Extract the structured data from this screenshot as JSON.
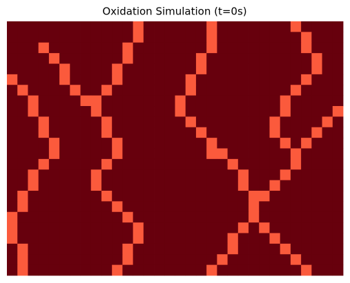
{
  "chart_data": {
    "type": "heatmap",
    "title": "Oxidation Simulation (t=0s)",
    "colors": [
      "#67000d",
      "#fb5a3c"
    ],
    "values": [
      [
        0,
        0,
        0,
        0,
        0,
        0,
        0,
        0,
        0,
        0,
        0,
        0,
        1,
        0,
        0,
        0,
        0,
        0,
        0,
        1,
        0,
        0,
        0,
        0,
        0,
        0,
        0,
        1,
        0,
        0,
        0,
        0
      ],
      [
        0,
        0,
        0,
        0,
        0,
        0,
        0,
        0,
        0,
        0,
        0,
        0,
        1,
        0,
        0,
        0,
        0,
        0,
        0,
        1,
        0,
        0,
        0,
        0,
        0,
        0,
        0,
        0,
        1,
        0,
        0,
        0
      ],
      [
        0,
        0,
        0,
        1,
        0,
        0,
        0,
        0,
        0,
        0,
        0,
        1,
        0,
        0,
        0,
        0,
        0,
        0,
        0,
        1,
        0,
        0,
        0,
        0,
        0,
        0,
        0,
        0,
        1,
        0,
        0,
        0
      ],
      [
        0,
        0,
        0,
        0,
        1,
        0,
        0,
        0,
        0,
        0,
        0,
        1,
        0,
        0,
        0,
        0,
        0,
        0,
        1,
        0,
        0,
        0,
        0,
        0,
        0,
        0,
        0,
        0,
        0,
        1,
        0,
        0
      ],
      [
        0,
        0,
        0,
        0,
        0,
        1,
        0,
        0,
        0,
        0,
        1,
        0,
        0,
        0,
        0,
        0,
        0,
        0,
        1,
        0,
        0,
        0,
        0,
        0,
        0,
        0,
        0,
        0,
        0,
        1,
        0,
        0
      ],
      [
        1,
        0,
        0,
        0,
        0,
        1,
        0,
        0,
        0,
        0,
        1,
        0,
        0,
        0,
        0,
        0,
        0,
        1,
        0,
        0,
        0,
        0,
        0,
        0,
        0,
        0,
        0,
        0,
        1,
        0,
        0,
        0
      ],
      [
        0,
        1,
        0,
        0,
        0,
        0,
        1,
        0,
        0,
        1,
        0,
        0,
        0,
        0,
        0,
        0,
        0,
        1,
        0,
        0,
        0,
        0,
        0,
        0,
        0,
        0,
        0,
        1,
        0,
        0,
        0,
        0
      ],
      [
        0,
        0,
        1,
        0,
        0,
        0,
        0,
        1,
        1,
        0,
        0,
        0,
        0,
        0,
        0,
        0,
        1,
        0,
        0,
        0,
        0,
        0,
        0,
        0,
        0,
        0,
        1,
        0,
        0,
        0,
        0,
        0
      ],
      [
        0,
        0,
        1,
        0,
        0,
        0,
        0,
        0,
        1,
        0,
        0,
        0,
        0,
        0,
        0,
        0,
        1,
        0,
        0,
        0,
        0,
        0,
        0,
        0,
        0,
        0,
        1,
        0,
        0,
        0,
        0,
        1
      ],
      [
        0,
        0,
        0,
        1,
        0,
        0,
        0,
        0,
        0,
        1,
        0,
        0,
        0,
        0,
        0,
        0,
        0,
        1,
        0,
        0,
        0,
        0,
        0,
        0,
        0,
        1,
        0,
        0,
        0,
        0,
        1,
        0
      ],
      [
        0,
        0,
        0,
        1,
        0,
        0,
        0,
        0,
        0,
        1,
        0,
        0,
        0,
        0,
        0,
        0,
        0,
        0,
        1,
        0,
        0,
        0,
        0,
        0,
        0,
        1,
        0,
        0,
        0,
        1,
        0,
        0
      ],
      [
        0,
        0,
        0,
        0,
        1,
        0,
        0,
        0,
        0,
        0,
        1,
        0,
        0,
        0,
        0,
        0,
        0,
        0,
        0,
        1,
        0,
        0,
        0,
        0,
        0,
        0,
        1,
        0,
        1,
        0,
        0,
        0
      ],
      [
        0,
        0,
        0,
        0,
        1,
        0,
        0,
        0,
        0,
        0,
        1,
        0,
        0,
        0,
        0,
        0,
        0,
        0,
        0,
        1,
        1,
        0,
        0,
        0,
        0,
        0,
        0,
        1,
        0,
        0,
        0,
        0
      ],
      [
        0,
        0,
        0,
        1,
        0,
        0,
        0,
        0,
        0,
        1,
        0,
        0,
        0,
        0,
        0,
        0,
        0,
        0,
        0,
        0,
        0,
        1,
        0,
        0,
        0,
        0,
        0,
        1,
        0,
        0,
        0,
        0
      ],
      [
        0,
        0,
        1,
        0,
        0,
        0,
        0,
        0,
        1,
        0,
        0,
        0,
        0,
        0,
        0,
        0,
        0,
        0,
        0,
        0,
        0,
        0,
        1,
        0,
        0,
        0,
        1,
        0,
        0,
        0,
        0,
        0
      ],
      [
        0,
        0,
        1,
        0,
        0,
        0,
        0,
        0,
        1,
        0,
        0,
        0,
        0,
        0,
        0,
        0,
        0,
        0,
        0,
        0,
        0,
        0,
        1,
        0,
        0,
        1,
        0,
        0,
        0,
        0,
        0,
        0
      ],
      [
        0,
        1,
        0,
        0,
        0,
        0,
        0,
        0,
        0,
        1,
        0,
        0,
        0,
        0,
        0,
        0,
        0,
        0,
        0,
        0,
        0,
        0,
        0,
        1,
        1,
        0,
        0,
        0,
        0,
        0,
        0,
        0
      ],
      [
        0,
        1,
        0,
        0,
        0,
        0,
        0,
        0,
        0,
        0,
        1,
        0,
        0,
        0,
        0,
        0,
        0,
        0,
        0,
        0,
        0,
        0,
        0,
        1,
        0,
        0,
        0,
        0,
        0,
        0,
        0,
        0
      ],
      [
        1,
        0,
        0,
        0,
        0,
        0,
        0,
        0,
        0,
        0,
        0,
        1,
        0,
        0,
        0,
        0,
        0,
        0,
        0,
        0,
        0,
        0,
        0,
        1,
        0,
        0,
        0,
        0,
        0,
        0,
        0,
        0
      ],
      [
        1,
        0,
        0,
        0,
        0,
        0,
        0,
        0,
        0,
        0,
        0,
        0,
        1,
        0,
        0,
        0,
        0,
        0,
        0,
        0,
        0,
        0,
        1,
        0,
        1,
        0,
        0,
        0,
        0,
        0,
        0,
        0
      ],
      [
        1,
        0,
        0,
        0,
        0,
        0,
        0,
        0,
        0,
        0,
        0,
        0,
        1,
        0,
        0,
        0,
        0,
        0,
        0,
        0,
        0,
        1,
        0,
        0,
        0,
        1,
        0,
        0,
        0,
        0,
        0,
        0
      ],
      [
        0,
        1,
        0,
        0,
        0,
        0,
        0,
        0,
        0,
        0,
        0,
        1,
        0,
        0,
        0,
        0,
        0,
        0,
        0,
        0,
        0,
        1,
        0,
        0,
        0,
        0,
        1,
        0,
        0,
        0,
        0,
        0
      ],
      [
        0,
        1,
        0,
        0,
        0,
        0,
        0,
        0,
        0,
        0,
        0,
        1,
        0,
        0,
        0,
        0,
        0,
        0,
        0,
        0,
        1,
        0,
        0,
        0,
        0,
        0,
        0,
        1,
        0,
        0,
        0,
        0
      ],
      [
        0,
        1,
        0,
        0,
        0,
        0,
        0,
        0,
        0,
        0,
        1,
        0,
        0,
        0,
        0,
        0,
        0,
        0,
        0,
        1,
        0,
        0,
        0,
        0,
        0,
        0,
        0,
        0,
        1,
        0,
        0,
        0
      ]
    ]
  }
}
